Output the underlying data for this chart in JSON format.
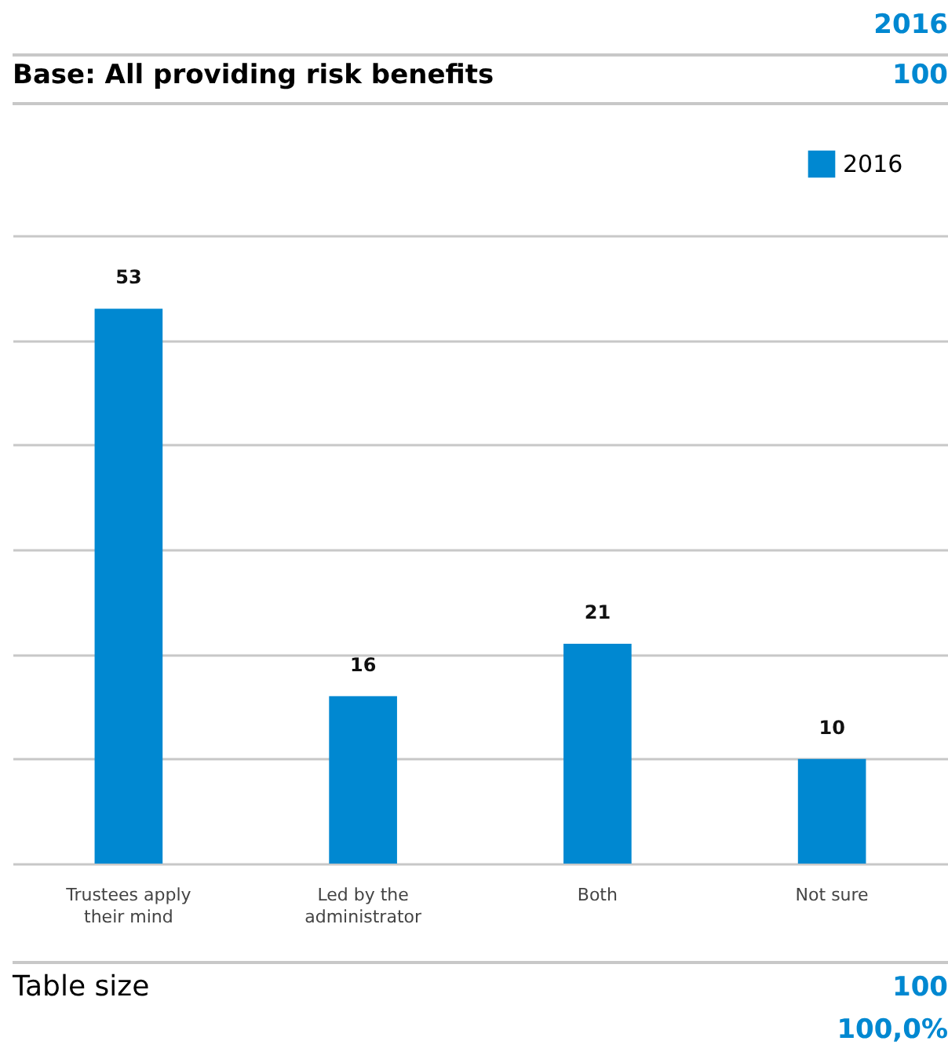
{
  "chart_data": {
    "type": "bar",
    "categories": [
      "Trustees apply their mind",
      "Led by the administrator",
      "Both",
      "Not sure"
    ],
    "series": [
      {
        "name": "2016",
        "color": "#0088d1",
        "values": [
          53,
          16,
          21,
          10
        ]
      }
    ],
    "ylim": [
      0,
      60
    ],
    "yticks": [
      0,
      10,
      20,
      30,
      40,
      50,
      60
    ],
    "grid": "y",
    "tick_labels": "x",
    "legend": "top right",
    "data_labels": true,
    "annotations": [
      "2016",
      "Base: All providing risk benefits",
      "100",
      "Table size",
      "100",
      "100,0%"
    ]
  }
}
